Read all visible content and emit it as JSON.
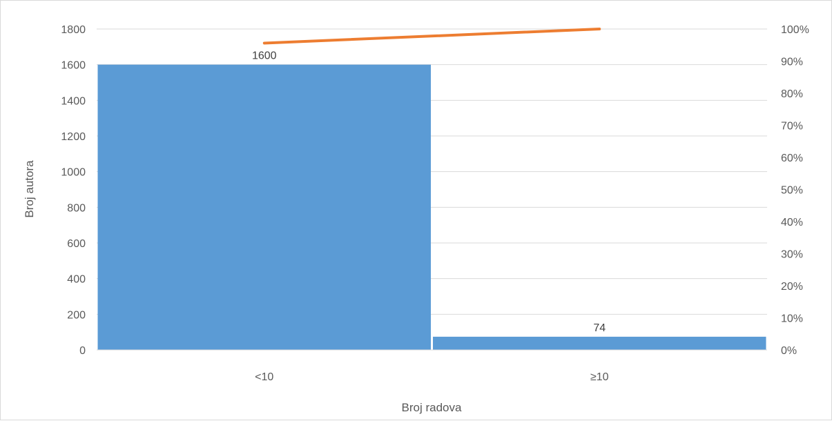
{
  "chart_data": {
    "type": "bar",
    "categories": [
      "<10",
      "≥10"
    ],
    "series": [
      {
        "type": "bar",
        "values": [
          1600,
          74
        ],
        "color": "#5b9bd5"
      },
      {
        "type": "line",
        "axis": "secondary",
        "values": [
          0.956,
          1.0
        ],
        "color": "#ed7d31"
      }
    ],
    "data_labels": [
      "1600",
      "74"
    ],
    "xlabel": "Broj radova",
    "ylabel": "Broj autora",
    "ylim": [
      0,
      1800
    ],
    "yticks": [
      0,
      200,
      400,
      600,
      800,
      1000,
      1200,
      1400,
      1600,
      1800
    ],
    "y2lim": [
      0,
      1
    ],
    "y2ticks": [
      "0%",
      "10%",
      "20%",
      "30%",
      "40%",
      "50%",
      "60%",
      "70%",
      "80%",
      "90%",
      "100%"
    ],
    "grid": true,
    "legend": "none"
  }
}
